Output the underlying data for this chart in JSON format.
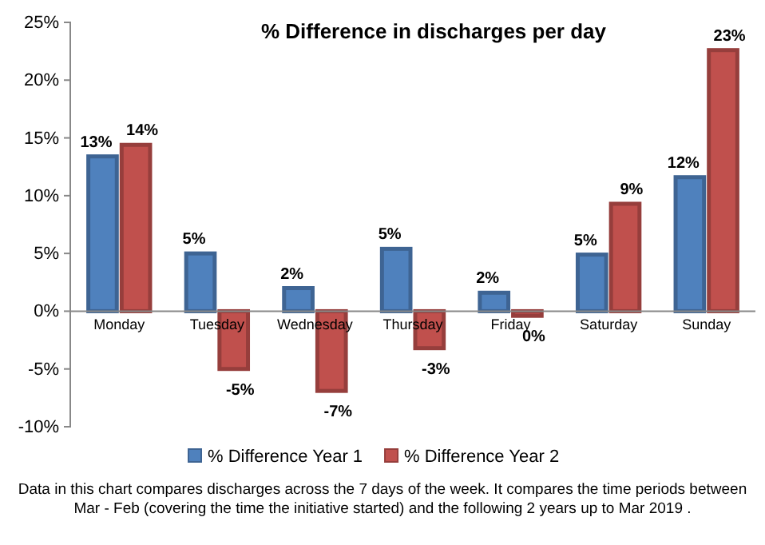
{
  "chart_data": {
    "type": "bar",
    "title": "% Difference in discharges per day",
    "categories": [
      "Monday",
      "Tuesday",
      "Wednesday",
      "Thursday",
      "Friday",
      "Saturday",
      "Sunday"
    ],
    "series": [
      {
        "name": "% Difference Year 1",
        "color": "#4f81bd",
        "values": [
          13.4,
          5.0,
          2.0,
          5.4,
          1.6,
          4.9,
          11.6
        ],
        "value_labels": [
          "13%",
          "5%",
          "2%",
          "5%",
          "2%",
          "5%",
          "12%"
        ]
      },
      {
        "name": "% Difference Year 2",
        "color": "#c0504d",
        "values": [
          14.4,
          -5.0,
          -6.9,
          -3.2,
          -0.4,
          9.3,
          22.6
        ],
        "value_labels": [
          "14%",
          "-5%",
          "-7%",
          "-3%",
          "0%",
          "9%",
          "23%"
        ]
      }
    ],
    "ylim": [
      -10,
      25
    ],
    "yticks": [
      {
        "value": -10,
        "label": "-10%"
      },
      {
        "value": -5,
        "label": "-5%"
      },
      {
        "value": 0,
        "label": "0%"
      },
      {
        "value": 5,
        "label": "5%"
      },
      {
        "value": 10,
        "label": "10%"
      },
      {
        "value": 15,
        "label": "15%"
      },
      {
        "value": 20,
        "label": "20%"
      },
      {
        "value": 25,
        "label": "25%"
      }
    ],
    "legend": "bottom",
    "annotations": [
      "Data in this chart compares discharges across the 7 days of the week. It compares the time periods between Mar - Feb (covering the time the initiative started) and the following 2 years up to Mar 2019 ."
    ]
  }
}
